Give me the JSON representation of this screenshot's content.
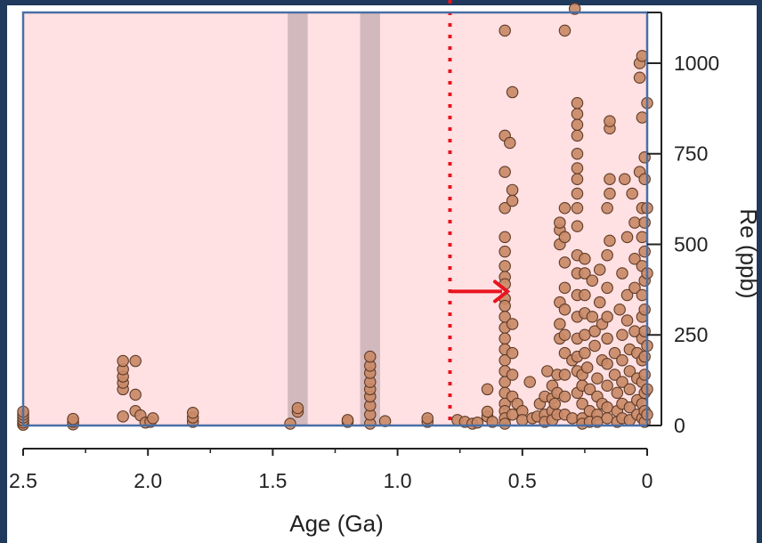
{
  "colors": {
    "frame": "#1f3a5c",
    "plot_background": "#ffe0e3",
    "plot_border": "#4a6fa5",
    "marker_fill": "#c98a68",
    "marker_stroke": "#5e3a26",
    "band": "#c9b2b6",
    "cutoff_line": "#e8141e",
    "arrow": "#e8141e",
    "axis": "#222222"
  },
  "chart_data": {
    "type": "scatter",
    "xlabel": "Age (Ga)",
    "ylabel": "Re (ppb)",
    "x_reversed": true,
    "xlim": [
      2.5,
      0
    ],
    "ylim": [
      0,
      1140
    ],
    "x_ticks": [
      2.5,
      2.0,
      1.5,
      1.0,
      0.5,
      0
    ],
    "x_tick_labels": [
      "2.5",
      "2.0",
      "1.5",
      "1.0",
      "0.5",
      "0"
    ],
    "y_ticks": [
      0,
      250,
      500,
      750,
      1000
    ],
    "y_tick_labels": [
      "0",
      "250",
      "500",
      "750",
      "1000"
    ],
    "grid": false,
    "legend": "none",
    "shaded_bands": [
      {
        "x_from": 1.44,
        "x_to": 1.36
      },
      {
        "x_from": 1.15,
        "x_to": 1.07
      }
    ],
    "vertical_line": {
      "x": 0.79,
      "style": "dotted"
    },
    "arrow_annotation": {
      "x_from": 0.79,
      "x_to": 0.56,
      "y": 370
    },
    "points": [
      [
        2.5,
        2
      ],
      [
        2.5,
        8
      ],
      [
        2.5,
        14
      ],
      [
        2.5,
        22
      ],
      [
        2.5,
        30
      ],
      [
        2.5,
        38
      ],
      [
        2.3,
        3
      ],
      [
        2.3,
        10
      ],
      [
        2.3,
        18
      ],
      [
        2.1,
        25
      ],
      [
        2.1,
        100
      ],
      [
        2.1,
        118
      ],
      [
        2.1,
        135
      ],
      [
        2.1,
        155
      ],
      [
        2.1,
        178
      ],
      [
        2.05,
        40
      ],
      [
        2.05,
        85
      ],
      [
        2.05,
        178
      ],
      [
        2.03,
        28
      ],
      [
        2.01,
        8
      ],
      [
        1.99,
        10
      ],
      [
        1.98,
        20
      ],
      [
        1.82,
        10
      ],
      [
        1.82,
        22
      ],
      [
        1.82,
        35
      ],
      [
        1.43,
        5
      ],
      [
        1.4,
        38
      ],
      [
        1.4,
        48
      ],
      [
        1.2,
        10
      ],
      [
        1.2,
        15
      ],
      [
        1.11,
        5
      ],
      [
        1.11,
        30
      ],
      [
        1.11,
        55
      ],
      [
        1.11,
        80
      ],
      [
        1.11,
        100
      ],
      [
        1.11,
        120
      ],
      [
        1.11,
        145
      ],
      [
        1.11,
        165
      ],
      [
        1.11,
        190
      ],
      [
        1.05,
        12
      ],
      [
        0.88,
        10
      ],
      [
        0.88,
        20
      ],
      [
        0.76,
        15
      ],
      [
        0.73,
        10
      ],
      [
        0.7,
        5
      ],
      [
        0.68,
        8
      ],
      [
        0.64,
        25
      ],
      [
        0.64,
        38
      ],
      [
        0.64,
        100
      ],
      [
        0.62,
        10
      ],
      [
        0.57,
        1090
      ],
      [
        0.57,
        800
      ],
      [
        0.57,
        700
      ],
      [
        0.57,
        600
      ],
      [
        0.57,
        520
      ],
      [
        0.57,
        480
      ],
      [
        0.57,
        440
      ],
      [
        0.57,
        410
      ],
      [
        0.57,
        390
      ],
      [
        0.57,
        350
      ],
      [
        0.57,
        330
      ],
      [
        0.57,
        300
      ],
      [
        0.57,
        270
      ],
      [
        0.57,
        240
      ],
      [
        0.57,
        210
      ],
      [
        0.57,
        180
      ],
      [
        0.57,
        150
      ],
      [
        0.57,
        120
      ],
      [
        0.57,
        90
      ],
      [
        0.57,
        60
      ],
      [
        0.57,
        40
      ],
      [
        0.57,
        20
      ],
      [
        0.57,
        5
      ],
      [
        0.55,
        780
      ],
      [
        0.54,
        920
      ],
      [
        0.54,
        650
      ],
      [
        0.54,
        620
      ],
      [
        0.54,
        280
      ],
      [
        0.54,
        200
      ],
      [
        0.54,
        140
      ],
      [
        0.54,
        80
      ],
      [
        0.54,
        30
      ],
      [
        0.52,
        60
      ],
      [
        0.5,
        40
      ],
      [
        0.5,
        15
      ],
      [
        0.47,
        120
      ],
      [
        0.46,
        20
      ],
      [
        0.44,
        25
      ],
      [
        0.43,
        60
      ],
      [
        0.41,
        30
      ],
      [
        0.41,
        80
      ],
      [
        0.41,
        10
      ],
      [
        0.4,
        150
      ],
      [
        0.38,
        110
      ],
      [
        0.38,
        75
      ],
      [
        0.38,
        40
      ],
      [
        0.38,
        15
      ],
      [
        0.37,
        60
      ],
      [
        0.36,
        30
      ],
      [
        0.36,
        90
      ],
      [
        0.36,
        140
      ],
      [
        0.35,
        240
      ],
      [
        0.35,
        280
      ],
      [
        0.35,
        340
      ],
      [
        0.35,
        500
      ],
      [
        0.35,
        540
      ],
      [
        0.35,
        560
      ],
      [
        0.33,
        1090
      ],
      [
        0.33,
        600
      ],
      [
        0.33,
        520
      ],
      [
        0.33,
        450
      ],
      [
        0.33,
        380
      ],
      [
        0.33,
        320
      ],
      [
        0.33,
        250
      ],
      [
        0.33,
        200
      ],
      [
        0.33,
        140
      ],
      [
        0.33,
        80
      ],
      [
        0.33,
        30
      ],
      [
        0.3,
        180
      ],
      [
        0.3,
        20
      ],
      [
        0.29,
        1150
      ],
      [
        0.28,
        90
      ],
      [
        0.28,
        150
      ],
      [
        0.28,
        190
      ],
      [
        0.28,
        240
      ],
      [
        0.28,
        300
      ],
      [
        0.28,
        360
      ],
      [
        0.28,
        420
      ],
      [
        0.28,
        470
      ],
      [
        0.28,
        550
      ],
      [
        0.28,
        600
      ],
      [
        0.28,
        640
      ],
      [
        0.28,
        680
      ],
      [
        0.28,
        710
      ],
      [
        0.28,
        750
      ],
      [
        0.28,
        800
      ],
      [
        0.28,
        830
      ],
      [
        0.28,
        860
      ],
      [
        0.28,
        890
      ],
      [
        0.26,
        140
      ],
      [
        0.26,
        110
      ],
      [
        0.26,
        60
      ],
      [
        0.26,
        20
      ],
      [
        0.26,
        5
      ],
      [
        0.25,
        250
      ],
      [
        0.25,
        310
      ],
      [
        0.25,
        360
      ],
      [
        0.25,
        420
      ],
      [
        0.25,
        460
      ],
      [
        0.25,
        200
      ],
      [
        0.24,
        160
      ],
      [
        0.23,
        100
      ],
      [
        0.23,
        40
      ],
      [
        0.23,
        10
      ],
      [
        0.22,
        300
      ],
      [
        0.22,
        400
      ],
      [
        0.21,
        220
      ],
      [
        0.21,
        260
      ],
      [
        0.2,
        130
      ],
      [
        0.2,
        80
      ],
      [
        0.2,
        30
      ],
      [
        0.2,
        10
      ],
      [
        0.19,
        340
      ],
      [
        0.19,
        430
      ],
      [
        0.18,
        280
      ],
      [
        0.18,
        180
      ],
      [
        0.18,
        60
      ],
      [
        0.16,
        600
      ],
      [
        0.16,
        470
      ],
      [
        0.16,
        380
      ],
      [
        0.16,
        300
      ],
      [
        0.16,
        240
      ],
      [
        0.16,
        170
      ],
      [
        0.16,
        110
      ],
      [
        0.16,
        50
      ],
      [
        0.16,
        20
      ],
      [
        0.15,
        820
      ],
      [
        0.15,
        840
      ],
      [
        0.15,
        680
      ],
      [
        0.15,
        640
      ],
      [
        0.15,
        510
      ],
      [
        0.13,
        200
      ],
      [
        0.13,
        140
      ],
      [
        0.12,
        90
      ],
      [
        0.12,
        40
      ],
      [
        0.12,
        10
      ],
      [
        0.11,
        320
      ],
      [
        0.1,
        420
      ],
      [
        0.1,
        250
      ],
      [
        0.1,
        180
      ],
      [
        0.1,
        120
      ],
      [
        0.1,
        60
      ],
      [
        0.1,
        20
      ],
      [
        0.09,
        680
      ],
      [
        0.08,
        520
      ],
      [
        0.08,
        360
      ],
      [
        0.08,
        290
      ],
      [
        0.07,
        210
      ],
      [
        0.07,
        150
      ],
      [
        0.07,
        100
      ],
      [
        0.07,
        50
      ],
      [
        0.07,
        15
      ],
      [
        0.06,
        640
      ],
      [
        0.05,
        560
      ],
      [
        0.05,
        460
      ],
      [
        0.05,
        380
      ],
      [
        0.05,
        260
      ],
      [
        0.04,
        200
      ],
      [
        0.04,
        130
      ],
      [
        0.04,
        70
      ],
      [
        0.04,
        30
      ],
      [
        0.03,
        700
      ],
      [
        0.03,
        960
      ],
      [
        0.03,
        1000
      ],
      [
        0.02,
        1020
      ],
      [
        0.02,
        850
      ],
      [
        0.02,
        600
      ],
      [
        0.02,
        520
      ],
      [
        0.02,
        440
      ],
      [
        0.02,
        360
      ],
      [
        0.02,
        300
      ],
      [
        0.02,
        240
      ],
      [
        0.02,
        180
      ],
      [
        0.02,
        120
      ],
      [
        0.02,
        60
      ],
      [
        0.02,
        20
      ],
      [
        0.01,
        740
      ],
      [
        0.01,
        680
      ],
      [
        0.01,
        560
      ],
      [
        0.01,
        480
      ],
      [
        0.01,
        400
      ],
      [
        0.01,
        320
      ],
      [
        0.01,
        260
      ],
      [
        0.01,
        190
      ],
      [
        0.01,
        140
      ],
      [
        0.01,
        90
      ],
      [
        0.01,
        40
      ],
      [
        0.01,
        10
      ],
      [
        0.0,
        890
      ],
      [
        0.0,
        600
      ],
      [
        0.0,
        420
      ],
      [
        0.0,
        220
      ],
      [
        0.0,
        100
      ],
      [
        0.0,
        30
      ]
    ]
  }
}
